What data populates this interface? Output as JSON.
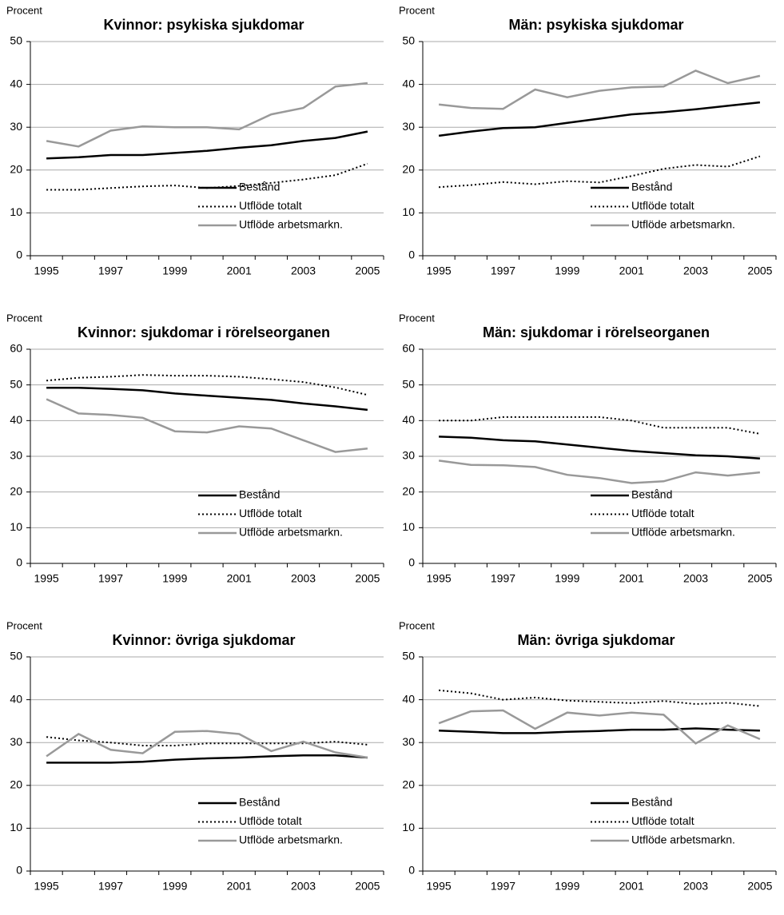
{
  "chart_data": [
    {
      "type": "line",
      "title": "Kvinnor: psykiska sjukdomar",
      "y_label": "Procent",
      "categories": [
        "1995",
        null,
        "1997",
        null,
        "1999",
        null,
        "2001",
        null,
        "2003",
        null,
        "2005"
      ],
      "ylim": [
        0,
        50
      ],
      "yticks": [
        0,
        10,
        20,
        30,
        40,
        50
      ],
      "grid": true,
      "legend": "lower right",
      "series": [
        {
          "name": "Bestånd",
          "color": "#000000",
          "style": "solid",
          "values": [
            22.7,
            23,
            23.5,
            23.5,
            24,
            24.5,
            25.2,
            25.8,
            26.8,
            27.5,
            29
          ]
        },
        {
          "name": "Utflöde totalt",
          "color": "#000000",
          "style": "dotted",
          "values": [
            15.4,
            15.4,
            15.8,
            16.2,
            16.4,
            15.8,
            16.3,
            17,
            17.8,
            18.8,
            21.5
          ]
        },
        {
          "name": "Utflöde arbetsmarkn.",
          "color": "#999999",
          "style": "solid",
          "values": [
            26.8,
            25.5,
            29.2,
            30.2,
            30,
            30,
            29.5,
            33,
            34.5,
            39.5,
            40.3
          ]
        }
      ]
    },
    {
      "type": "line",
      "title": "Män: psykiska sjukdomar",
      "y_label": "Procent",
      "categories": [
        "1995",
        null,
        "1997",
        null,
        "1999",
        null,
        "2001",
        null,
        "2003",
        null,
        "2005"
      ],
      "ylim": [
        0,
        50
      ],
      "yticks": [
        0,
        10,
        20,
        30,
        40,
        50
      ],
      "grid": true,
      "legend": "lower right",
      "series": [
        {
          "name": "Bestånd",
          "color": "#000000",
          "style": "solid",
          "values": [
            28,
            29,
            29.8,
            30,
            31,
            32,
            33,
            33.5,
            34.2,
            35,
            35.8
          ]
        },
        {
          "name": "Utflöde totalt",
          "color": "#000000",
          "style": "dotted",
          "values": [
            16,
            16.5,
            17.2,
            16.7,
            17.4,
            17.1,
            18.6,
            20.3,
            21.2,
            20.8,
            23.2
          ]
        },
        {
          "name": "Utflöde arbetsmarkn.",
          "color": "#999999",
          "style": "solid",
          "values": [
            35.3,
            34.5,
            34.3,
            38.8,
            37,
            38.5,
            39.3,
            39.5,
            43.2,
            40.3,
            42
          ]
        }
      ]
    },
    {
      "type": "line",
      "title": "Kvinnor: sjukdomar i rörelseorganen",
      "y_label": "Procent",
      "categories": [
        "1995",
        null,
        "1997",
        null,
        "1999",
        null,
        "2001",
        null,
        "2003",
        null,
        "2005"
      ],
      "ylim": [
        0,
        60
      ],
      "yticks": [
        0,
        10,
        20,
        30,
        40,
        50,
        60
      ],
      "grid": true,
      "legend": "lower right",
      "series": [
        {
          "name": "Bestånd",
          "color": "#000000",
          "style": "solid",
          "values": [
            49.2,
            49.2,
            48.9,
            48.5,
            47.6,
            47,
            46.4,
            45.8,
            44.8,
            44,
            43
          ]
        },
        {
          "name": "Utflöde totalt",
          "color": "#000000",
          "style": "dotted",
          "values": [
            51.2,
            52,
            52.3,
            52.8,
            52.6,
            52.6,
            52.3,
            51.6,
            50.8,
            49.3,
            47.2
          ]
        },
        {
          "name": "Utflöde arbetsmarkn.",
          "color": "#999999",
          "style": "solid",
          "values": [
            46,
            42,
            41.6,
            40.8,
            37,
            36.7,
            38.4,
            37.8,
            34.5,
            31.2,
            32.2
          ]
        }
      ]
    },
    {
      "type": "line",
      "title": "Män: sjukdomar i rörelseorganen",
      "y_label": "Procent",
      "categories": [
        "1995",
        null,
        "1997",
        null,
        "1999",
        null,
        "2001",
        null,
        "2003",
        null,
        "2005"
      ],
      "ylim": [
        0,
        60
      ],
      "yticks": [
        0,
        10,
        20,
        30,
        40,
        50,
        60
      ],
      "grid": true,
      "legend": "lower right",
      "series": [
        {
          "name": "Bestånd",
          "color": "#000000",
          "style": "solid",
          "values": [
            35.5,
            35.2,
            34.5,
            34.2,
            33.3,
            32.4,
            31.5,
            30.9,
            30.3,
            30,
            29.4
          ]
        },
        {
          "name": "Utflöde totalt",
          "color": "#000000",
          "style": "dotted",
          "values": [
            40,
            40,
            41,
            41,
            41,
            41,
            40,
            38,
            38,
            38,
            36.3
          ]
        },
        {
          "name": "Utflöde arbetsmarkn.",
          "color": "#999999",
          "style": "solid",
          "values": [
            28.8,
            27.6,
            27.5,
            27,
            24.8,
            23.9,
            22.5,
            23,
            25.5,
            24.6,
            25.5
          ]
        }
      ]
    },
    {
      "type": "line",
      "title": "Kvinnor: övriga sjukdomar",
      "y_label": "Procent",
      "categories": [
        "1995",
        null,
        "1997",
        null,
        "1999",
        null,
        "2001",
        null,
        "2003",
        null,
        "2005"
      ],
      "ylim": [
        0,
        50
      ],
      "yticks": [
        0,
        10,
        20,
        30,
        40,
        50
      ],
      "grid": true,
      "legend": "lower right",
      "series": [
        {
          "name": "Bestånd",
          "color": "#000000",
          "style": "solid",
          "values": [
            25.3,
            25.3,
            25.3,
            25.5,
            26,
            26.3,
            26.5,
            26.8,
            27,
            27,
            26.5
          ]
        },
        {
          "name": "Utflöde totalt",
          "color": "#000000",
          "style": "dotted",
          "values": [
            31.3,
            30.5,
            30,
            29.3,
            29.3,
            29.8,
            29.8,
            29.8,
            29.8,
            30.2,
            29.5
          ]
        },
        {
          "name": "Utflöde arbetsmarkn.",
          "color": "#999999",
          "style": "solid",
          "values": [
            26.8,
            32,
            28.3,
            27.5,
            32.5,
            32.7,
            32,
            28,
            30.2,
            27.7,
            26.5
          ]
        }
      ]
    },
    {
      "type": "line",
      "title": "Män: övriga sjukdomar",
      "y_label": "Procent",
      "categories": [
        "1995",
        null,
        "1997",
        null,
        "1999",
        null,
        "2001",
        null,
        "2003",
        null,
        "2005"
      ],
      "ylim": [
        0,
        50
      ],
      "yticks": [
        0,
        10,
        20,
        30,
        40,
        50
      ],
      "grid": true,
      "legend": "lower right",
      "series": [
        {
          "name": "Bestånd",
          "color": "#000000",
          "style": "solid",
          "values": [
            32.8,
            32.5,
            32.2,
            32.2,
            32.5,
            32.7,
            33,
            33,
            33.3,
            33,
            32.8
          ]
        },
        {
          "name": "Utflöde totalt",
          "color": "#000000",
          "style": "dotted",
          "values": [
            42.2,
            41.5,
            40,
            40.5,
            39.8,
            39.5,
            39.2,
            39.7,
            39,
            39.3,
            38.5
          ]
        },
        {
          "name": "Utflöde arbetsmarkn.",
          "color": "#999999",
          "style": "solid",
          "values": [
            34.5,
            37.3,
            37.5,
            33.2,
            37,
            36.3,
            37,
            36.5,
            29.8,
            34,
            30.8
          ]
        }
      ]
    }
  ]
}
